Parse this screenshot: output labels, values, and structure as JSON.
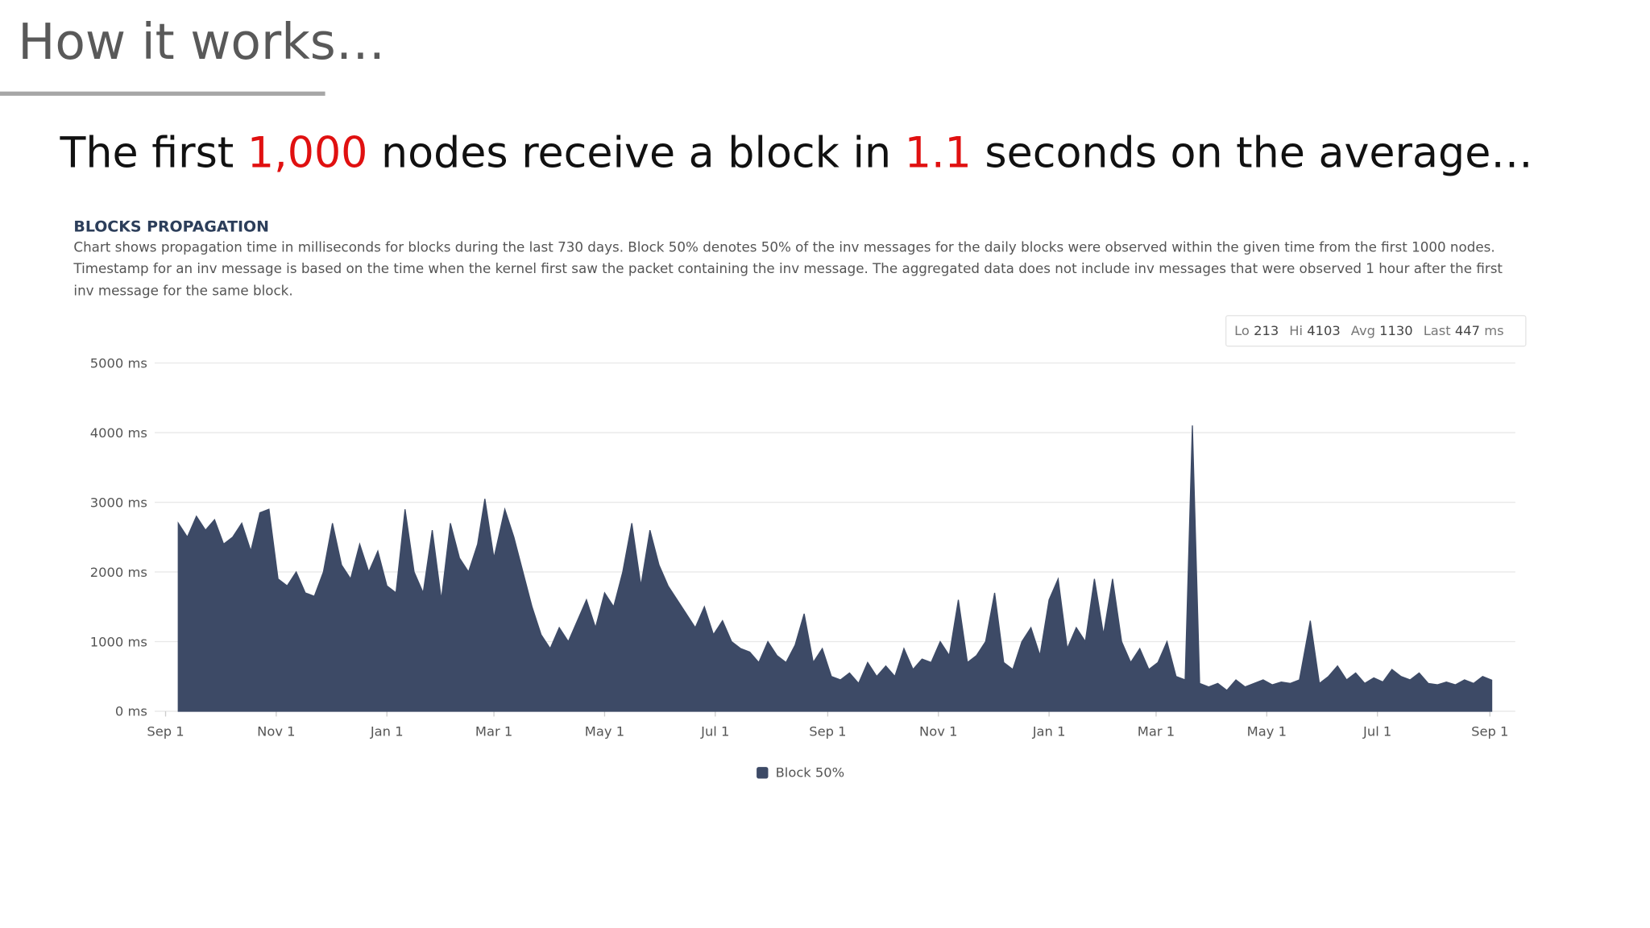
{
  "slide": {
    "heading": "How it works…",
    "subtitle": [
      "The first ",
      "1,000",
      " nodes receive a block in ",
      "1.1",
      " seconds on the average…"
    ]
  },
  "chart_data": {
    "type": "area",
    "title": "BLOCKS PROPAGATION",
    "description": [
      "Chart shows propagation time in milliseconds for blocks during the last 730 days. Block 50% denotes 50% of the inv messages for the daily blocks were observed within the given time from the first 1000 nodes.",
      "Timestamp for an inv message is based on the time when the kernel first saw the packet containing the inv message. The aggregated data does not include inv messages that were observed 1 hour after the first",
      "inv message for the same block."
    ],
    "stats": [
      {
        "label": "Lo",
        "value": 213
      },
      {
        "label": "Hi",
        "value": 4103
      },
      {
        "label": "Avg",
        "value": 1130
      },
      {
        "label": "Last",
        "value": 447
      }
    ],
    "stats_unit": "ms",
    "x": [
      7,
      12,
      17,
      22,
      27,
      32,
      37,
      42,
      47,
      52,
      57,
      62,
      67,
      72,
      77,
      82,
      87,
      92,
      97,
      102,
      107,
      112,
      117,
      122,
      127,
      132,
      137,
      142,
      147,
      152,
      157,
      162,
      167,
      172,
      176,
      181,
      187,
      192,
      197,
      202,
      207,
      212,
      217,
      222,
      227,
      232,
      237,
      242,
      247,
      252,
      257,
      262,
      267,
      272,
      277,
      282,
      287,
      292,
      297,
      302,
      307,
      312,
      317,
      322,
      327,
      332,
      337,
      342,
      347,
      352,
      357,
      362,
      367,
      372,
      377,
      382,
      387,
      392,
      397,
      402,
      407,
      412,
      417,
      422,
      427,
      432,
      437,
      442,
      447,
      452,
      457,
      462,
      467,
      472,
      477,
      482,
      487,
      492,
      497,
      502,
      507,
      512,
      517,
      522,
      527,
      532,
      537,
      542,
      547,
      552,
      557,
      562,
      566,
      570,
      575,
      580,
      585,
      590,
      595,
      600,
      605,
      610,
      615,
      620,
      625,
      631,
      636,
      641,
      646,
      651,
      656,
      661,
      666,
      671,
      676,
      681,
      686,
      691,
      696,
      701,
      706,
      711,
      716,
      721,
      726,
      731
    ],
    "series": [
      {
        "name": "Block 50%",
        "color": "#3d4a66",
        "values": [
          2700,
          2500,
          2800,
          2600,
          2750,
          2400,
          2500,
          2700,
          2300,
          2850,
          2900,
          1900,
          1800,
          2000,
          1700,
          1650,
          2000,
          2700,
          2100,
          1900,
          2400,
          2000,
          2300,
          1800,
          1700,
          2900,
          2000,
          1700,
          2600,
          1600,
          2700,
          2200,
          2000,
          2400,
          3050,
          2200,
          2900,
          2500,
          2000,
          1500,
          1100,
          900,
          1200,
          1000,
          1300,
          1600,
          1200,
          1700,
          1500,
          2000,
          2700,
          1800,
          2600,
          2100,
          1800,
          1600,
          1400,
          1200,
          1500,
          1100,
          1300,
          1000,
          900,
          850,
          700,
          1000,
          800,
          700,
          950,
          1400,
          700,
          900,
          500,
          450,
          550,
          400,
          700,
          500,
          650,
          500,
          900,
          600,
          750,
          700,
          1000,
          800,
          1600,
          700,
          800,
          1000,
          1700,
          700,
          600,
          1000,
          1200,
          800,
          1600,
          1900,
          900,
          1200,
          1000,
          1900,
          1100,
          1900,
          1000,
          700,
          900,
          600,
          700,
          1000,
          500,
          450,
          4103,
          400,
          350,
          400,
          300,
          450,
          350,
          400,
          450,
          380,
          420,
          400,
          450,
          1300,
          400,
          500,
          650,
          450,
          550,
          400,
          480,
          420,
          600,
          500,
          450,
          550,
          400,
          380,
          420,
          380,
          450,
          400,
          500,
          447
        ]
      }
    ],
    "xlim": [
      -6,
      744
    ],
    "xticks": [
      {
        "value": 0,
        "label": "Sep 1"
      },
      {
        "value": 61,
        "label": "Nov 1"
      },
      {
        "value": 122,
        "label": "Jan 1"
      },
      {
        "value": 181,
        "label": "Mar 1"
      },
      {
        "value": 242,
        "label": "May 1"
      },
      {
        "value": 303,
        "label": "Jul 1"
      },
      {
        "value": 365,
        "label": "Sep 1"
      },
      {
        "value": 426,
        "label": "Nov 1"
      },
      {
        "value": 487,
        "label": "Jan 1"
      },
      {
        "value": 546,
        "label": "Mar 1"
      },
      {
        "value": 607,
        "label": "May 1"
      },
      {
        "value": 668,
        "label": "Jul 1"
      },
      {
        "value": 730,
        "label": "Sep 1"
      }
    ],
    "ylim": [
      0,
      5000
    ],
    "yticks": [
      {
        "value": 0,
        "label": "0 ms"
      },
      {
        "value": 1000,
        "label": "1000 ms"
      },
      {
        "value": 2000,
        "label": "2000 ms"
      },
      {
        "value": 3000,
        "label": "3000 ms"
      },
      {
        "value": 4000,
        "label": "4000 ms"
      },
      {
        "value": 5000,
        "label": "5000 ms"
      }
    ],
    "grid": true,
    "legend": "bottom"
  }
}
